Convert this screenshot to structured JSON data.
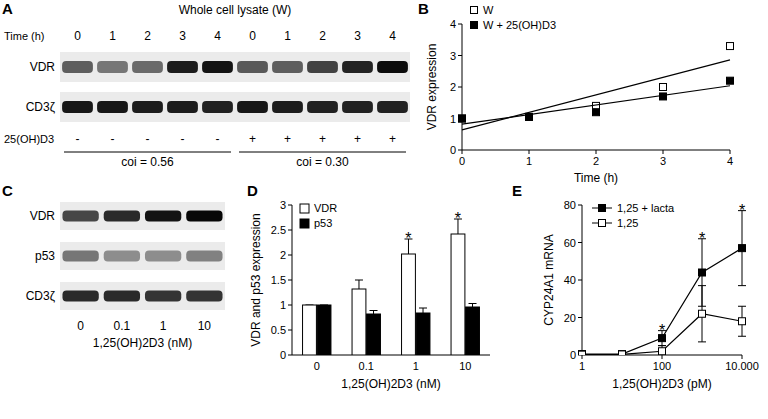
{
  "chart_data": [
    {
      "type": "blot",
      "title": "A",
      "header": "Whole cell lysate (W)",
      "lane_label_rows": [
        {
          "label": "Time (h)",
          "values": [
            "0",
            "1",
            "2",
            "3",
            "4",
            "0",
            "1",
            "2",
            "3",
            "4"
          ]
        },
        {
          "label": "25(OH)D3",
          "values": [
            "-",
            "-",
            "-",
            "-",
            "-",
            "+",
            "+",
            "+",
            "+",
            "+"
          ]
        }
      ],
      "rows": [
        {
          "label": "VDR",
          "intensity": [
            0.6,
            0.5,
            0.55,
            0.88,
            0.92,
            0.62,
            0.6,
            0.72,
            0.85,
            0.95
          ]
        },
        {
          "label": "CD3ζ",
          "intensity": [
            0.9,
            0.9,
            0.88,
            0.88,
            0.86,
            0.9,
            0.88,
            0.86,
            0.86,
            0.86
          ]
        }
      ],
      "groups": [
        {
          "label": "coi = 0.56",
          "count": 5
        },
        {
          "label": "coi = 0.30",
          "count": 5
        }
      ]
    },
    {
      "type": "scatter",
      "title": "B",
      "x": [
        0,
        1,
        2,
        3,
        4
      ],
      "xlim": [
        0,
        4
      ],
      "xticks": [
        0,
        1,
        2,
        3,
        4
      ],
      "ylim": [
        0,
        4
      ],
      "yticks": [
        0,
        1,
        2,
        3,
        4
      ],
      "xlabel": "Time (h)",
      "ylabel": "VDR expression",
      "legend": "upper left",
      "series": [
        {
          "name": "W",
          "color": "#ffffff",
          "marker": "square",
          "line_style": "none",
          "values": [
            1,
            1.05,
            1.4,
            2,
            3.3
          ]
        },
        {
          "name": "W + 25(OH)D3",
          "color": "#000000",
          "marker": "square",
          "line_style": "none",
          "values": [
            1,
            1.05,
            1.2,
            1.7,
            2.2
          ]
        },
        {
          "type": "line",
          "marker": "none",
          "line_style": "solid",
          "x": [
            0,
            4
          ],
          "values": [
            0.64,
            2.86
          ]
        },
        {
          "type": "line",
          "marker": "none",
          "line_style": "solid",
          "x": [
            0,
            4
          ],
          "values": [
            0.82,
            2.04
          ]
        }
      ]
    },
    {
      "type": "blot",
      "title": "C",
      "xlabel": "1,25(OH)2D3 (nM)",
      "lane_label_rows": [
        {
          "values": [
            "0",
            "0.1",
            "1",
            "10"
          ]
        }
      ],
      "rows": [
        {
          "label": "VDR",
          "intensity": [
            0.7,
            0.82,
            0.92,
            0.97
          ]
        },
        {
          "label": "p53",
          "intensity": [
            0.5,
            0.4,
            0.4,
            0.45
          ]
        },
        {
          "label": "CD3ζ",
          "intensity": [
            0.82,
            0.82,
            0.78,
            0.78
          ]
        }
      ]
    },
    {
      "type": "bar",
      "title": "D",
      "categories": [
        "0",
        "0.1",
        "1",
        "10"
      ],
      "ylim": [
        0,
        3
      ],
      "yticks": [
        0,
        0.5,
        1,
        1.5,
        2,
        2.5,
        3
      ],
      "xlabel": "1,25(OH)2D3 (nM)",
      "ylabel": "VDR and p53 expression",
      "legend": "upper left",
      "series": [
        {
          "name": "VDR",
          "color": "#ffffff",
          "values": [
            1,
            1.32,
            2.02,
            2.42
          ],
          "errors": [
            0,
            0.18,
            0.3,
            0.3
          ]
        },
        {
          "name": "p53",
          "color": "#000000",
          "values": [
            1,
            0.82,
            0.84,
            0.96
          ],
          "errors": [
            0,
            0.07,
            0.1,
            0.07
          ]
        }
      ],
      "annotations": [
        {
          "text": "*",
          "category": 2,
          "series": 0
        },
        {
          "text": "*",
          "category": 3,
          "series": 0
        }
      ]
    },
    {
      "type": "line",
      "title": "E",
      "log": "x",
      "x": [
        1,
        10,
        100,
        1000,
        10000
      ],
      "xlim": [
        1,
        10000
      ],
      "xticks": [
        1,
        100,
        {
          "value": 10000,
          "label": "10.000"
        }
      ],
      "ylim": [
        0,
        80
      ],
      "yticks": [
        0,
        20,
        40,
        60,
        80
      ],
      "xlabel": "1,25(OH)2D3 (pM)",
      "ylabel": "CYP24A1 mRNA",
      "legend": "upper left",
      "series": [
        {
          "name": "1,25 + lacta",
          "color": "#000000",
          "marker": "square",
          "line_style": "solid",
          "values": [
            0.5,
            0.5,
            9,
            44,
            57
          ],
          "errors": [
            0.3,
            0.5,
            4,
            18,
            20
          ]
        },
        {
          "name": "1,25",
          "color": "#ffffff",
          "marker": "square",
          "line_style": "solid",
          "values": [
            0.2,
            0.3,
            2,
            22,
            18
          ],
          "errors": [
            0.2,
            0.3,
            3,
            15,
            8
          ]
        }
      ],
      "annotations": [
        {
          "text": "*",
          "x": 100
        },
        {
          "text": "*",
          "x": 1000
        },
        {
          "text": "*",
          "x": 10000
        }
      ]
    }
  ]
}
